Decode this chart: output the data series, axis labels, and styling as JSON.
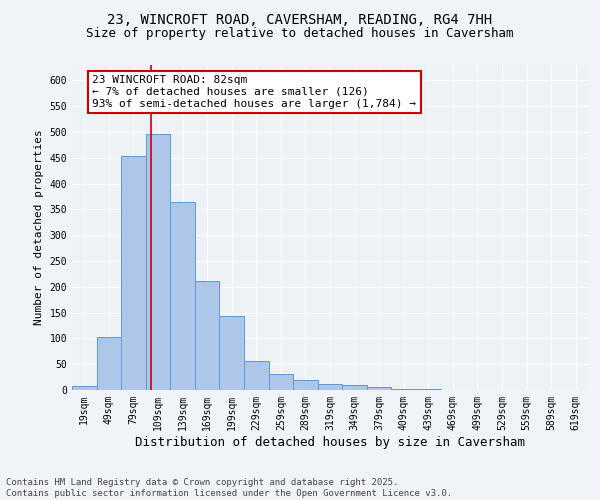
{
  "title_line1": "23, WINCROFT ROAD, CAVERSHAM, READING, RG4 7HH",
  "title_line2": "Size of property relative to detached houses in Caversham",
  "xlabel": "Distribution of detached houses by size in Caversham",
  "ylabel": "Number of detached properties",
  "bar_color": "#aec6e8",
  "bar_edge_color": "#5b9bd5",
  "categories": [
    "19sqm",
    "49sqm",
    "79sqm",
    "109sqm",
    "139sqm",
    "169sqm",
    "199sqm",
    "229sqm",
    "259sqm",
    "289sqm",
    "319sqm",
    "349sqm",
    "379sqm",
    "409sqm",
    "439sqm",
    "469sqm",
    "499sqm",
    "529sqm",
    "559sqm",
    "589sqm",
    "619sqm"
  ],
  "values": [
    7,
    102,
    453,
    497,
    365,
    212,
    144,
    57,
    31,
    20,
    12,
    10,
    5,
    2,
    1,
    0,
    0,
    0,
    0,
    0,
    0
  ],
  "ylim": [
    0,
    630
  ],
  "yticks": [
    0,
    50,
    100,
    150,
    200,
    250,
    300,
    350,
    400,
    450,
    500,
    550,
    600
  ],
  "vline_x_index": 2.73,
  "vline_color": "#cc0000",
  "annotation_text": "23 WINCROFT ROAD: 82sqm\n← 7% of detached houses are smaller (126)\n93% of semi-detached houses are larger (1,784) →",
  "annotation_box_color": "#cc0000",
  "background_color": "#eef2f7",
  "grid_color": "#ffffff",
  "footer_text": "Contains HM Land Registry data © Crown copyright and database right 2025.\nContains public sector information licensed under the Open Government Licence v3.0.",
  "title_fontsize": 10,
  "subtitle_fontsize": 9,
  "xlabel_fontsize": 9,
  "ylabel_fontsize": 8,
  "tick_fontsize": 7,
  "annotation_fontsize": 8,
  "footer_fontsize": 6.5
}
